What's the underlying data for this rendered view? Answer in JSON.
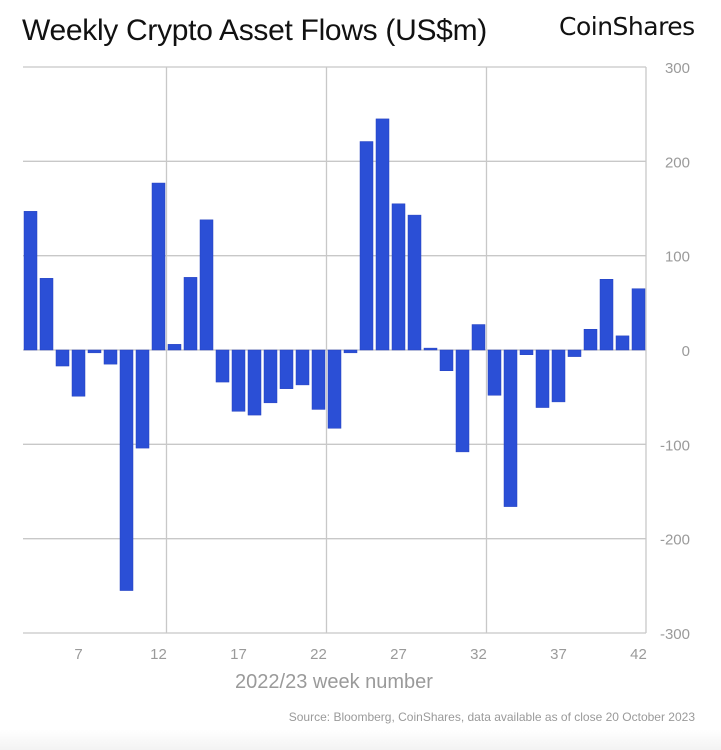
{
  "header": {
    "title": "Weekly Crypto Asset Flows (US$m)",
    "logo": "CoinShares"
  },
  "footer": {
    "source": "Source: Bloomberg, CoinShares, data available as of close 20 October 2023"
  },
  "colors": {
    "bar": "#2B4FD6",
    "grid": "#c8c8c8",
    "tick_text": "#9a9a9a"
  },
  "chart_data": {
    "type": "bar",
    "title": "Weekly Crypto Asset Flows (US$m)",
    "xlabel": "2022/23 week number",
    "ylabel": "",
    "ylim": [
      -300,
      300
    ],
    "y_ticks": [
      300,
      200,
      100,
      0,
      -100,
      -200,
      -300
    ],
    "y_axis_side": "right",
    "x_ticks": [
      7,
      12,
      17,
      22,
      27,
      32,
      37,
      42
    ],
    "grid": true,
    "vertical_grid_after_weeks": [
      12,
      22,
      32
    ],
    "categories": [
      4,
      5,
      6,
      7,
      8,
      9,
      10,
      11,
      12,
      13,
      14,
      15,
      16,
      17,
      18,
      19,
      20,
      21,
      22,
      23,
      24,
      25,
      26,
      27,
      28,
      29,
      30,
      31,
      32,
      33,
      34,
      35,
      36,
      37,
      38,
      39,
      40,
      41,
      42
    ],
    "values": [
      147,
      76,
      -17,
      -49,
      -3,
      -15,
      -255,
      -104,
      177,
      6,
      77,
      138,
      -34,
      -65,
      -69,
      -56,
      -41,
      -37,
      -63,
      -83,
      -3,
      221,
      245,
      155,
      143,
      2,
      -22,
      -108,
      27,
      -48,
      -166,
      -5,
      -61,
      -55,
      -7,
      22,
      75,
      15,
      65
    ],
    "legend": null
  }
}
